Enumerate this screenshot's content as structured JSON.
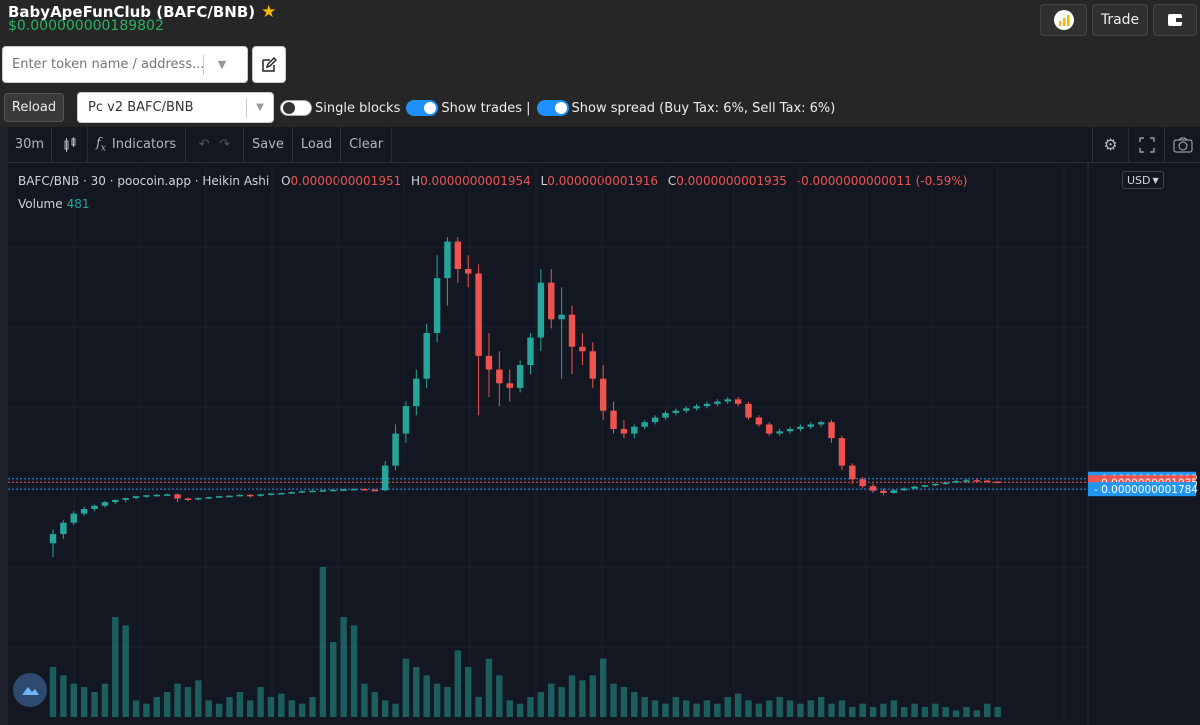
{
  "header": {
    "title": "BabyApeFunClub (BAFC/BNB)",
    "price": "$0.000000000189802",
    "trade_label": "Trade"
  },
  "search": {
    "placeholder": "Enter token name / address..."
  },
  "controls": {
    "reload_label": "Reload",
    "pair_value": "Pc v2 BAFC/BNB",
    "single_blocks_label": "Single blocks",
    "show_trades_label": "Show trades |",
    "show_spread_label": "Show spread (Buy Tax: 6%, Sell Tax: 6%)"
  },
  "toolbar": {
    "interval": "30m",
    "indicators_label": "Indicators",
    "save_label": "Save",
    "load_label": "Load",
    "clear_label": "Clear"
  },
  "legend": {
    "symbol": "BAFC/BNB · 30 · poocoin.app · Heikin Ashi",
    "o_key": "O",
    "o_val": "0.0000000001951",
    "h_key": "H",
    "h_val": "0.0000000001954",
    "l_key": "L",
    "l_val": "0.0000000001916",
    "c_key": "C",
    "c_val": "0.0000000001935",
    "change": "-0.0000000000011 (-0.59%)",
    "volume_label": "Volume",
    "volume_val": "481",
    "currency": "USD"
  },
  "chart_data": {
    "type": "candlestick",
    "price_lines": [
      {
        "label": "0.0000000002012",
        "y": 2.012e-10,
        "color": "#2196f3"
      },
      {
        "label": "0.0000000001935",
        "y": 1.935e-10,
        "color": "#ef5350"
      },
      {
        "label": "0.0000000001784",
        "y": 1.784e-10,
        "color": "#2196f3"
      }
    ],
    "up_color": "#26a69a",
    "down_color": "#ef5350",
    "candles": [
      [
        6e-11,
        9e-11,
        3e-11,
        8e-11
      ],
      [
        8e-11,
        1.1e-10,
        7e-11,
        1.05e-10
      ],
      [
        1.05e-10,
        1.3e-10,
        1e-10,
        1.25e-10
      ],
      [
        1.25e-10,
        1.4e-10,
        1.2e-10,
        1.35e-10
      ],
      [
        1.35e-10,
        1.45e-10,
        1.3e-10,
        1.42e-10
      ],
      [
        1.42e-10,
        1.52e-10,
        1.38e-10,
        1.5e-10
      ],
      [
        1.5e-10,
        1.56e-10,
        1.46e-10,
        1.55e-10
      ],
      [
        1.55e-10,
        1.6e-10,
        1.5e-10,
        1.59e-10
      ],
      [
        1.59e-10,
        1.64e-10,
        1.56e-10,
        1.63e-10
      ],
      [
        1.63e-10,
        1.66e-10,
        1.6e-10,
        1.65e-10
      ],
      [
        1.65e-10,
        1.68e-10,
        1.62e-10,
        1.66e-10
      ],
      [
        1.66e-10,
        1.69e-10,
        1.64e-10,
        1.67e-10
      ],
      [
        1.67e-10,
        1.69e-10,
        1.5e-10,
        1.58e-10
      ],
      [
        1.58e-10,
        1.6e-10,
        1.52e-10,
        1.56e-10
      ],
      [
        1.56e-10,
        1.6e-10,
        1.54e-10,
        1.59e-10
      ],
      [
        1.59e-10,
        1.62e-10,
        1.57e-10,
        1.61e-10
      ],
      [
        1.61e-10,
        1.64e-10,
        1.59e-10,
        1.63e-10
      ],
      [
        1.63e-10,
        1.65e-10,
        1.61e-10,
        1.64e-10
      ],
      [
        1.64e-10,
        1.67e-10,
        1.62e-10,
        1.66e-10
      ],
      [
        1.66e-10,
        1.68e-10,
        1.6e-10,
        1.64e-10
      ],
      [
        1.64e-10,
        1.68e-10,
        1.62e-10,
        1.67e-10
      ],
      [
        1.67e-10,
        1.7e-10,
        1.65e-10,
        1.69e-10
      ],
      [
        1.69e-10,
        1.71e-10,
        1.67e-10,
        1.7e-10
      ],
      [
        1.7e-10,
        1.73e-10,
        1.68e-10,
        1.72e-10
      ],
      [
        1.72e-10,
        1.75e-10,
        1.7e-10,
        1.74e-10
      ],
      [
        1.74e-10,
        1.76e-10,
        1.72e-10,
        1.75e-10
      ],
      [
        1.75e-10,
        1.77e-10,
        1.73e-10,
        1.76e-10
      ],
      [
        1.76e-10,
        1.78e-10,
        1.74e-10,
        1.77e-10
      ],
      [
        1.77e-10,
        1.79e-10,
        1.75e-10,
        1.78e-10
      ],
      [
        1.78e-10,
        1.8e-10,
        1.76e-10,
        1.79e-10
      ],
      [
        1.79e-10,
        1.8e-10,
        1.76e-10,
        1.77e-10
      ],
      [
        1.77e-10,
        1.79e-10,
        1.75e-10,
        1.76e-10
      ],
      [
        1.76e-10,
        2.4e-10,
        1.74e-10,
        2.3e-10
      ],
      [
        2.3e-10,
        3.2e-10,
        2.2e-10,
        3e-10
      ],
      [
        3e-10,
        3.7e-10,
        2.8e-10,
        3.6e-10
      ],
      [
        3.6e-10,
        4.4e-10,
        3.4e-10,
        4.2e-10
      ],
      [
        4.2e-10,
        5.4e-10,
        4e-10,
        5.2e-10
      ],
      [
        5.2e-10,
        6.9e-10,
        5e-10,
        6.4e-10
      ],
      [
        6.4e-10,
        7.3e-10,
        5.8e-10,
        7.2e-10
      ],
      [
        7.2e-10,
        7.3e-10,
        6.3e-10,
        6.6e-10
      ],
      [
        6.6e-10,
        6.9e-10,
        6.2e-10,
        6.5e-10
      ],
      [
        6.5e-10,
        6.7e-10,
        3.4e-10,
        4.7e-10
      ],
      [
        4.7e-10,
        5.2e-10,
        3.8e-10,
        4.4e-10
      ],
      [
        4.4e-10,
        4.8e-10,
        3.6e-10,
        4.1e-10
      ],
      [
        4.1e-10,
        4.4e-10,
        3.7e-10,
        4e-10
      ],
      [
        4e-10,
        4.6e-10,
        3.9e-10,
        4.5e-10
      ],
      [
        4.5e-10,
        5.2e-10,
        4.3e-10,
        5.1e-10
      ],
      [
        5.1e-10,
        6.6e-10,
        4.8e-10,
        6.3e-10
      ],
      [
        6.3e-10,
        6.6e-10,
        5.3e-10,
        5.5e-10
      ],
      [
        5.5e-10,
        6.2e-10,
        4.2e-10,
        5.6e-10
      ],
      [
        5.6e-10,
        5.8e-10,
        4.3e-10,
        4.9e-10
      ],
      [
        4.9e-10,
        5.2e-10,
        4.5e-10,
        4.8e-10
      ],
      [
        4.8e-10,
        5e-10,
        4e-10,
        4.2e-10
      ],
      [
        4.2e-10,
        4.5e-10,
        3.3e-10,
        3.5e-10
      ],
      [
        3.5e-10,
        3.7e-10,
        3e-10,
        3.1e-10
      ],
      [
        3.1e-10,
        3.3e-10,
        2.9e-10,
        3e-10
      ],
      [
        3e-10,
        3.2e-10,
        2.9e-10,
        3.15e-10
      ],
      [
        3.15e-10,
        3.3e-10,
        3.1e-10,
        3.25e-10
      ],
      [
        3.25e-10,
        3.4e-10,
        3.2e-10,
        3.35e-10
      ],
      [
        3.35e-10,
        3.5e-10,
        3.3e-10,
        3.45e-10
      ],
      [
        3.45e-10,
        3.55e-10,
        3.4e-10,
        3.5e-10
      ],
      [
        3.5e-10,
        3.6e-10,
        3.45e-10,
        3.55e-10
      ],
      [
        3.55e-10,
        3.65e-10,
        3.5e-10,
        3.6e-10
      ],
      [
        3.6e-10,
        3.7e-10,
        3.55e-10,
        3.65e-10
      ],
      [
        3.65e-10,
        3.75e-10,
        3.6e-10,
        3.7e-10
      ],
      [
        3.7e-10,
        3.8e-10,
        3.65e-10,
        3.75e-10
      ],
      [
        3.75e-10,
        3.8e-10,
        3.6e-10,
        3.65e-10
      ],
      [
        3.65e-10,
        3.7e-10,
        3.3e-10,
        3.35e-10
      ],
      [
        3.35e-10,
        3.4e-10,
        3.15e-10,
        3.2e-10
      ],
      [
        3.2e-10,
        3.25e-10,
        2.95e-10,
        3e-10
      ],
      [
        3e-10,
        3.1e-10,
        2.95e-10,
        3.05e-10
      ],
      [
        3.05e-10,
        3.15e-10,
        3e-10,
        3.1e-10
      ],
      [
        3.1e-10,
        3.2e-10,
        3.05e-10,
        3.15e-10
      ],
      [
        3.15e-10,
        3.25e-10,
        3.1e-10,
        3.2e-10
      ],
      [
        3.2e-10,
        3.28e-10,
        3.15e-10,
        3.25e-10
      ],
      [
        3.25e-10,
        3.3e-10,
        2.8e-10,
        2.9e-10
      ],
      [
        2.9e-10,
        2.95e-10,
        2.2e-10,
        2.3e-10
      ],
      [
        2.3e-10,
        2.35e-10,
        1.9e-10,
        2e-10
      ],
      [
        2e-10,
        2.05e-10,
        1.8e-10,
        1.85e-10
      ],
      [
        1.85e-10,
        1.9e-10,
        1.7e-10,
        1.75e-10
      ],
      [
        1.75e-10,
        1.8e-10,
        1.65e-10,
        1.7e-10
      ],
      [
        1.7e-10,
        1.78e-10,
        1.68e-10,
        1.76e-10
      ],
      [
        1.76e-10,
        1.82e-10,
        1.74e-10,
        1.8e-10
      ],
      [
        1.8e-10,
        1.86e-10,
        1.78e-10,
        1.84e-10
      ],
      [
        1.84e-10,
        1.88e-10,
        1.82e-10,
        1.87e-10
      ],
      [
        1.87e-10,
        1.91e-10,
        1.85e-10,
        1.9e-10
      ],
      [
        1.9e-10,
        1.95e-10,
        1.88e-10,
        1.93e-10
      ],
      [
        1.93e-10,
        1.99e-10,
        1.91e-10,
        1.96e-10
      ],
      [
        1.96e-10,
        2.01e-10,
        1.93e-10,
        1.98e-10
      ],
      [
        1.98e-10,
        2.02e-10,
        1.95e-10,
        1.97e-10
      ],
      [
        1.97e-10,
        1.99e-10,
        1.94e-10,
        1.96e-10
      ],
      [
        1.951e-10,
        1.954e-10,
        1.916e-10,
        1.935e-10
      ]
    ],
    "volumes": [
      30,
      25,
      20,
      18,
      15,
      20,
      60,
      55,
      10,
      8,
      12,
      15,
      20,
      18,
      22,
      10,
      8,
      12,
      15,
      10,
      18,
      12,
      14,
      10,
      8,
      12,
      90,
      45,
      60,
      55,
      20,
      15,
      10,
      8,
      35,
      30,
      25,
      20,
      18,
      40,
      30,
      12,
      35,
      25,
      10,
      8,
      12,
      15,
      20,
      18,
      25,
      22,
      25,
      35,
      20,
      18,
      15,
      12,
      10,
      8,
      12,
      10,
      8,
      10,
      8,
      12,
      14,
      10,
      8,
      10,
      12,
      10,
      8,
      10,
      12,
      8,
      10,
      6,
      8,
      6,
      8,
      10,
      6,
      8,
      6,
      8,
      6,
      4,
      6,
      4,
      8,
      6
    ]
  }
}
